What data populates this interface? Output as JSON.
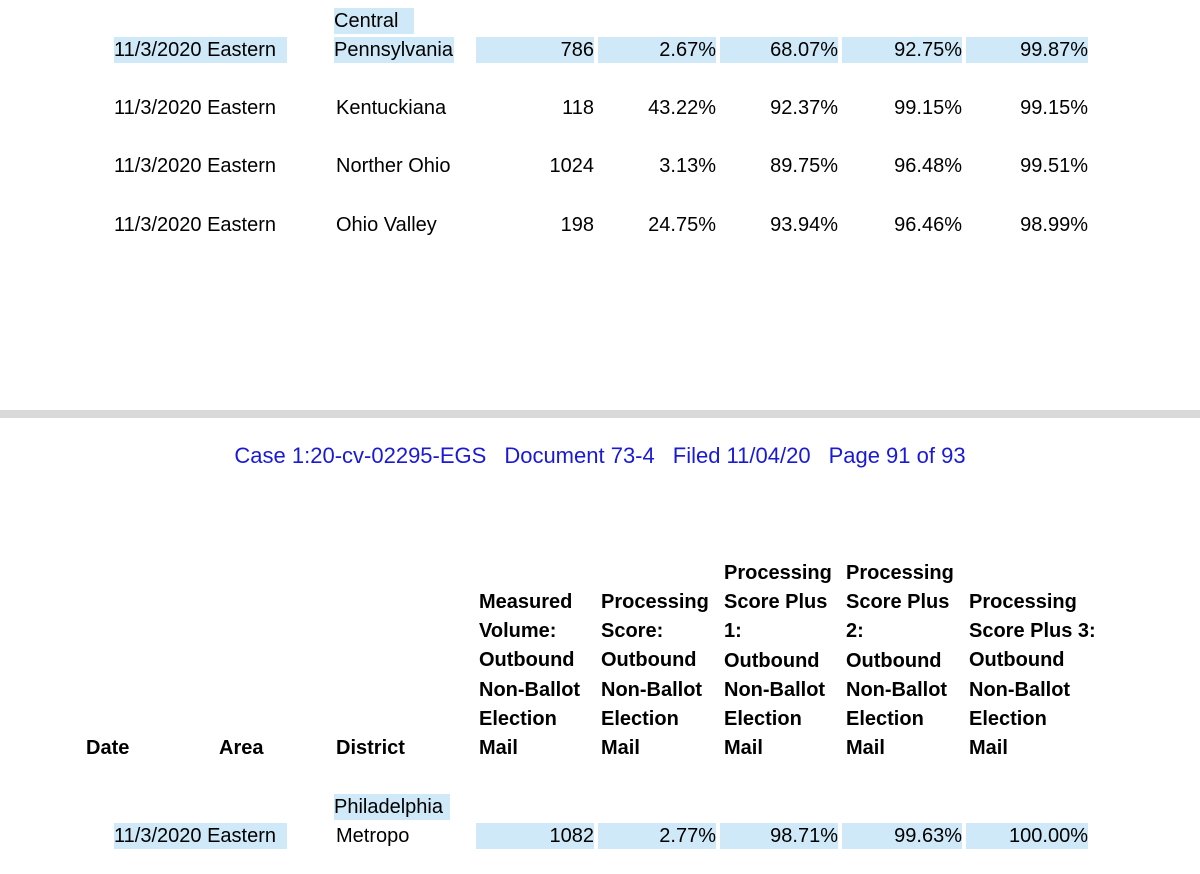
{
  "top_rows": [
    {
      "date": "11/3/2020",
      "area": "Eastern",
      "district_line1": "Central",
      "district_line2": "Pennsylvania",
      "volume": "786",
      "score": "2.67%",
      "plus1": "68.07%",
      "plus2": "92.75%",
      "plus3": "99.87%"
    },
    {
      "date": "11/3/2020",
      "area": "Eastern",
      "district_line1": "",
      "district_line2": "Kentuckiana",
      "volume": "118",
      "score": "43.22%",
      "plus1": "92.37%",
      "plus2": "99.15%",
      "plus3": "99.15%"
    },
    {
      "date": "11/3/2020",
      "area": "Eastern",
      "district_line1": "",
      "district_line2": "Norther Ohio",
      "volume": "1024",
      "score": "3.13%",
      "plus1": "89.75%",
      "plus2": "96.48%",
      "plus3": "99.51%"
    },
    {
      "date": "11/3/2020",
      "area": "Eastern",
      "district_line1": "",
      "district_line2": "Ohio Valley",
      "volume": "198",
      "score": "24.75%",
      "plus1": "93.94%",
      "plus2": "96.46%",
      "plus3": "98.99%"
    }
  ],
  "case_header": {
    "case": "Case 1:20-cv-02295-EGS",
    "document": "Document 73-4",
    "filed": "Filed 11/04/20",
    "page": "Page 91 of 93"
  },
  "column_headers": {
    "date": "Date",
    "area": "Area",
    "district": "District",
    "volume": [
      "Measured",
      "Volume:",
      "Outbound",
      "Non-Ballot",
      "Election",
      "Mail"
    ],
    "score": [
      "Processing",
      "Score:",
      "Outbound",
      "Non-Ballot",
      "Election",
      "Mail"
    ],
    "plus1": [
      "Processing",
      "Score Plus",
      "1:",
      "Outbound",
      "Non-Ballot",
      "Election",
      "Mail"
    ],
    "plus2": [
      "Processing",
      "Score Plus",
      "2:",
      "Outbound",
      "Non-Ballot",
      "Election",
      "Mail"
    ],
    "plus3": [
      "Processing",
      "Score Plus 3:",
      "Outbound",
      "Non-Ballot",
      "Election",
      "Mail"
    ]
  },
  "bottom_rows": [
    {
      "date": "11/3/2020",
      "area": "Eastern",
      "district_line1": "Philadelphia",
      "district_line2": "Metropo",
      "volume": "1082",
      "score": "2.77%",
      "plus1": "98.71%",
      "plus2": "99.63%",
      "plus3": "100.00%"
    }
  ],
  "colors": {
    "highlight": "#cfe9f8",
    "case_header": "#1a1ad6",
    "page_gap": "#d9d9d9"
  }
}
